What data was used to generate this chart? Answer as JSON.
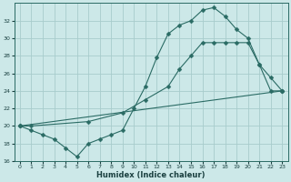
{
  "background_color": "#cce8e8",
  "grid_color": "#a8cccc",
  "line_color": "#2a6b64",
  "xlabel": "Humidex (Indice chaleur)",
  "ylim": [
    16,
    34
  ],
  "xlim": [
    -0.5,
    23.5
  ],
  "yticks": [
    16,
    18,
    20,
    22,
    24,
    26,
    28,
    30,
    32
  ],
  "xticks": [
    0,
    1,
    2,
    3,
    4,
    5,
    6,
    7,
    8,
    9,
    10,
    11,
    12,
    13,
    14,
    15,
    16,
    17,
    18,
    19,
    20,
    21,
    22,
    23
  ],
  "series1_x": [
    0,
    1,
    2,
    3,
    4,
    5,
    6,
    7,
    8,
    9,
    10,
    11,
    12,
    13,
    14,
    15,
    16,
    17,
    18,
    19,
    20,
    21,
    22,
    23
  ],
  "series1_y": [
    20.0,
    19.5,
    19.0,
    18.5,
    17.5,
    16.5,
    18.0,
    18.5,
    19.0,
    19.5,
    22.0,
    24.5,
    27.8,
    30.5,
    31.5,
    32.0,
    33.2,
    33.5,
    32.5,
    31.0,
    30.0,
    27.0,
    24.0,
    24.0
  ],
  "series2_x": [
    0,
    1,
    6,
    9,
    11,
    13,
    14,
    15,
    16,
    17,
    18,
    19,
    20,
    21,
    22,
    23
  ],
  "series2_y": [
    20.0,
    20.0,
    20.5,
    21.5,
    23.0,
    24.5,
    26.5,
    28.0,
    29.5,
    29.5,
    29.5,
    29.5,
    29.5,
    27.0,
    25.5,
    24.0
  ],
  "series3_x": [
    0,
    23
  ],
  "series3_y": [
    20.0,
    24.0
  ]
}
